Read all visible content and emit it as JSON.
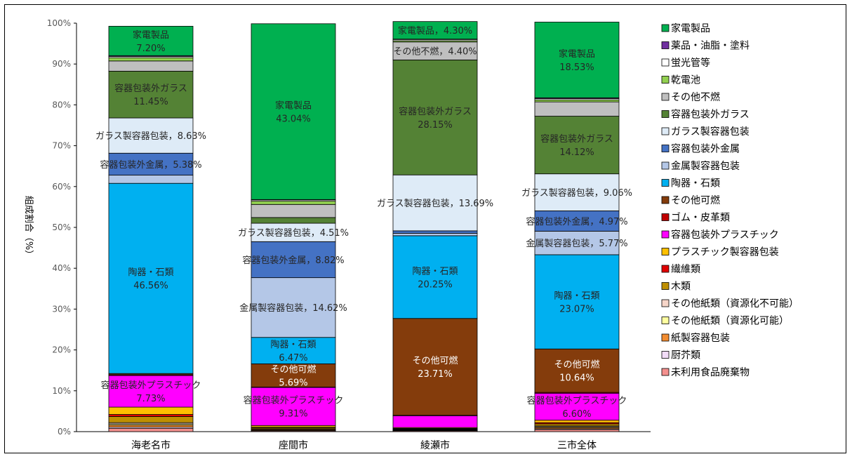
{
  "chart_data": {
    "type": "bar",
    "stacked": true,
    "percent": true,
    "ylabel": "組成割合（%）",
    "ylim": [
      0,
      100
    ],
    "yticks": [
      "0%",
      "10%",
      "20%",
      "30%",
      "40%",
      "50%",
      "60%",
      "70%",
      "80%",
      "90%",
      "100%"
    ],
    "grid": false,
    "legend_position": "right",
    "categories": [
      "海老名市",
      "座間市",
      "綾瀬市",
      "三市全体"
    ],
    "series": [
      {
        "name": "未利用食品廃棄物",
        "color": "#F4908E",
        "values": [
          0.8,
          0.2,
          0.2,
          0.5
        ]
      },
      {
        "name": "厨芥類",
        "color": "#F2DCF8",
        "values": [
          0.3,
          0.1,
          0.1,
          0.2
        ]
      },
      {
        "name": "紙製容器包装",
        "color": "#F28C30",
        "values": [
          0.5,
          0.2,
          0.1,
          0.3
        ]
      },
      {
        "name": "その他紙類（資源化可能）",
        "color": "#FFFFA0",
        "values": [
          0.3,
          0.1,
          0.1,
          0.2
        ]
      },
      {
        "name": "その他紙類（資源化不可能）",
        "color": "#F6D5C8",
        "values": [
          0.3,
          0.1,
          0.1,
          0.2
        ]
      },
      {
        "name": "木類",
        "color": "#BF8F00",
        "values": [
          1.5,
          0.3,
          0.1,
          0.5
        ]
      },
      {
        "name": "繊維類",
        "color": "#E00000",
        "values": [
          0.5,
          0.1,
          0.1,
          0.3
        ]
      },
      {
        "name": "プラスチック製容器包装",
        "color": "#FFC000",
        "values": [
          1.8,
          0.4,
          0.2,
          0.6
        ]
      },
      {
        "name": "容器包装外プラスチック",
        "color": "#FF00FF",
        "values": [
          7.73,
          9.31,
          2.9,
          6.6
        ]
      },
      {
        "name": "ゴム・皮革類",
        "color": "#C00000",
        "values": [
          0.2,
          0.1,
          0.1,
          0.2
        ]
      },
      {
        "name": "その他可燃",
        "color": "#843C0C",
        "values": [
          0.3,
          5.69,
          23.71,
          10.64
        ]
      },
      {
        "name": "陶器・石類",
        "color": "#00B0F0",
        "values": [
          46.56,
          6.47,
          20.25,
          23.07
        ]
      },
      {
        "name": "金属製容器包装",
        "color": "#B4C7E7",
        "values": [
          2.0,
          14.62,
          0.6,
          5.77
        ]
      },
      {
        "name": "容器包装外金属",
        "color": "#4472C4",
        "values": [
          5.38,
          8.82,
          0.6,
          4.97
        ]
      },
      {
        "name": "ガラス製容器包装",
        "color": "#DEEBF7",
        "values": [
          8.63,
          4.51,
          13.69,
          9.06
        ]
      },
      {
        "name": "容器包装外ガラス",
        "color": "#548235",
        "values": [
          11.45,
          1.4,
          28.15,
          14.12
        ]
      },
      {
        "name": "その他不燃",
        "color": "#BFBFBF",
        "values": [
          2.5,
          3.2,
          4.4,
          3.5
        ]
      },
      {
        "name": "乾電池",
        "color": "#92D050",
        "values": [
          0.8,
          0.8,
          0.3,
          0.5
        ]
      },
      {
        "name": "蛍光管等",
        "color": "#FFFFFF",
        "values": [
          0.3,
          0.3,
          0.3,
          0.3
        ]
      },
      {
        "name": "薬品・油脂・塗料",
        "color": "#7030A0",
        "values": [
          0.2,
          0.1,
          0.1,
          0.2
        ]
      },
      {
        "name": "家電製品",
        "color": "#00B050",
        "values": [
          7.2,
          43.04,
          4.3,
          18.53
        ]
      }
    ],
    "data_labels": [
      {
        "category": "海老名市",
        "series": "家電製品",
        "text": [
          "家電製品",
          "7.20%"
        ]
      },
      {
        "category": "海老名市",
        "series": "容器包装外ガラス",
        "text": [
          "容器包装外ガラス",
          "11.45%"
        ]
      },
      {
        "category": "海老名市",
        "series": "ガラス製容器包装",
        "text": [
          "ガラス製容器包装，8.63%"
        ]
      },
      {
        "category": "海老名市",
        "series": "容器包装外金属",
        "text": [
          "容器包装外金属，5.38%"
        ]
      },
      {
        "category": "海老名市",
        "series": "陶器・石類",
        "text": [
          "陶器・石類",
          "46.56%"
        ]
      },
      {
        "category": "海老名市",
        "series": "容器包装外プラスチック",
        "text": [
          "容器包装外プラスチック",
          "7.73%"
        ]
      },
      {
        "category": "座間市",
        "series": "家電製品",
        "text": [
          "家電製品",
          "43.04%"
        ]
      },
      {
        "category": "座間市",
        "series": "ガラス製容器包装",
        "text": [
          "ガラス製容器包装，4.51%"
        ]
      },
      {
        "category": "座間市",
        "series": "容器包装外金属",
        "text": [
          "容器包装外金属，8.82%"
        ]
      },
      {
        "category": "座間市",
        "series": "金属製容器包装",
        "text": [
          "金属製容器包装，14.62%"
        ]
      },
      {
        "category": "座間市",
        "series": "陶器・石類",
        "text": [
          "陶器・石類",
          "6.47%"
        ]
      },
      {
        "category": "座間市",
        "series": "その他可燃",
        "text": [
          "その他可燃",
          "5.69%"
        ]
      },
      {
        "category": "座間市",
        "series": "容器包装外プラスチック",
        "text": [
          "容器包装外プラスチック",
          "9.31%"
        ]
      },
      {
        "category": "綾瀬市",
        "series": "家電製品",
        "text": [
          "家電製品，4.30%"
        ]
      },
      {
        "category": "綾瀬市",
        "series": "その他不燃",
        "text": [
          "その他不燃，4.40%"
        ]
      },
      {
        "category": "綾瀬市",
        "series": "容器包装外ガラス",
        "text": [
          "容器包装外ガラス",
          "28.15%"
        ]
      },
      {
        "category": "綾瀬市",
        "series": "ガラス製容器包装",
        "text": [
          "ガラス製容器包装，13.69%"
        ]
      },
      {
        "category": "綾瀬市",
        "series": "陶器・石類",
        "text": [
          "陶器・石類",
          "20.25%"
        ]
      },
      {
        "category": "綾瀬市",
        "series": "その他可燃",
        "text": [
          "その他可燃",
          "23.71%"
        ]
      },
      {
        "category": "三市全体",
        "series": "家電製品",
        "text": [
          "家電製品",
          "18.53%"
        ]
      },
      {
        "category": "三市全体",
        "series": "容器包装外ガラス",
        "text": [
          "容器包装外ガラス",
          "14.12%"
        ]
      },
      {
        "category": "三市全体",
        "series": "ガラス製容器包装",
        "text": [
          "ガラス製容器包装，9.06%"
        ]
      },
      {
        "category": "三市全体",
        "series": "容器包装外金属",
        "text": [
          "容器包装外金属，4.97%"
        ]
      },
      {
        "category": "三市全体",
        "series": "金属製容器包装",
        "text": [
          "金属製容器包装，5.77%"
        ]
      },
      {
        "category": "三市全体",
        "series": "陶器・石類",
        "text": [
          "陶器・石類",
          "23.07%"
        ]
      },
      {
        "category": "三市全体",
        "series": "その他可燃",
        "text": [
          "その他可燃",
          "10.64%"
        ]
      },
      {
        "category": "三市全体",
        "series": "容器包装外プラスチック",
        "text": [
          "容器包装外プラスチック",
          "6.60%"
        ]
      }
    ]
  }
}
